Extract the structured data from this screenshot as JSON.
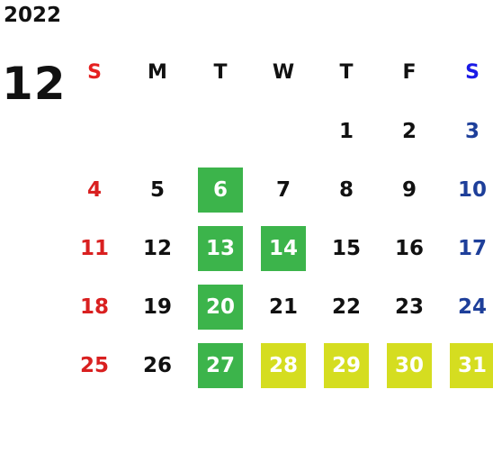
{
  "calendar": {
    "year": "2022",
    "month": "12",
    "weekdays": [
      "S",
      "M",
      "T",
      "W",
      "T",
      "F",
      "S"
    ],
    "first_weekday_index": 4,
    "days": [
      {
        "label": "1",
        "highlight": null
      },
      {
        "label": "2",
        "highlight": null
      },
      {
        "label": "3",
        "highlight": null
      },
      {
        "label": "4",
        "highlight": null
      },
      {
        "label": "5",
        "highlight": null
      },
      {
        "label": "6",
        "highlight": "green"
      },
      {
        "label": "7",
        "highlight": null
      },
      {
        "label": "8",
        "highlight": null
      },
      {
        "label": "9",
        "highlight": null
      },
      {
        "label": "10",
        "highlight": null
      },
      {
        "label": "11",
        "highlight": null
      },
      {
        "label": "12",
        "highlight": null
      },
      {
        "label": "13",
        "highlight": "green"
      },
      {
        "label": "14",
        "highlight": "green"
      },
      {
        "label": "15",
        "highlight": null
      },
      {
        "label": "16",
        "highlight": null
      },
      {
        "label": "17",
        "highlight": null
      },
      {
        "label": "18",
        "highlight": null
      },
      {
        "label": "19",
        "highlight": null
      },
      {
        "label": "20",
        "highlight": "green"
      },
      {
        "label": "21",
        "highlight": null
      },
      {
        "label": "22",
        "highlight": null
      },
      {
        "label": "23",
        "highlight": null
      },
      {
        "label": "24",
        "highlight": null
      },
      {
        "label": "25",
        "highlight": null
      },
      {
        "label": "26",
        "highlight": null
      },
      {
        "label": "27",
        "highlight": "green"
      },
      {
        "label": "28",
        "highlight": "lime"
      },
      {
        "label": "29",
        "highlight": "lime"
      },
      {
        "label": "30",
        "highlight": "lime"
      },
      {
        "label": "31",
        "highlight": "lime"
      }
    ]
  },
  "colors": {
    "sunday_header": "#e52020",
    "saturday_header": "#1a1ae6",
    "sunday_day": "#d92020",
    "saturday_day": "#1e3f9a",
    "weekday_text": "#111111",
    "highlight_green": "#3cb44b",
    "highlight_lime": "#d5dd20",
    "highlight_text": "#ffffff"
  }
}
